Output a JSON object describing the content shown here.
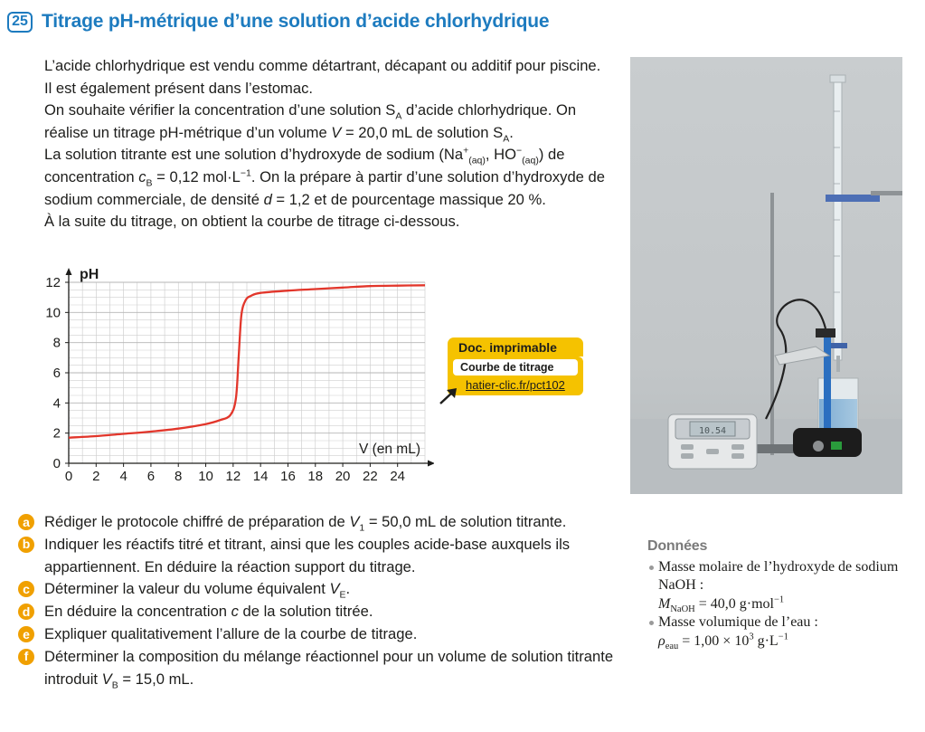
{
  "header": {
    "number": "25",
    "title": "Titrage pH-métrique d’une solution d’acide chlorhydrique"
  },
  "intro": {
    "p1": "L’acide chlorhydrique est vendu comme détartrant, décapant ou additif pour piscine. Il est également présent dans l’estomac.",
    "p2_a": "On souhaite vérifier la concentration d’une solution S",
    "p2_a_sub": "A",
    "p2_b": " d’acide chlorhydrique. On réalise un titrage pH-métrique d’un volume ",
    "p2_var": "V",
    "p2_c": " = 20,0 mL de solution S",
    "p2_c_sub": "A",
    "p2_d": ".",
    "p3_a": "La solution titrante est une solution d’hydroxyde de sodium (Na",
    "p3_na_sup": "+",
    "p3_na_sub": "(aq)",
    "p3_b": ", HO",
    "p3_ho_sup": "−",
    "p3_ho_sub": "(aq)",
    "p3_c": ") de concentration ",
    "p3_var": "c",
    "p3_var_sub": "B",
    "p3_d": " = 0,12 mol·L",
    "p3_d_sup": "−1",
    "p3_e": ". On la prépare à partir d’une solution d’hydroxyde de sodium commerciale, de densité ",
    "p3_dvar": "d",
    "p3_f": " = 1,2 et de pourcentage massique 20 %.",
    "p4": "À la suite du titrage, on obtient la courbe de titrage ci-dessous."
  },
  "chart_data": {
    "type": "line",
    "title": "",
    "xlabel": "V (en mL)",
    "ylabel": "pH",
    "xlim": [
      0,
      26
    ],
    "ylim": [
      0,
      12
    ],
    "xticks": [
      0,
      2,
      4,
      6,
      8,
      10,
      12,
      14,
      16,
      18,
      20,
      22,
      24
    ],
    "yticks": [
      0,
      2,
      4,
      6,
      8,
      10,
      12
    ],
    "grid": true,
    "color": "#e2362b",
    "series": [
      {
        "x": [
          0,
          2,
          4,
          6,
          8,
          10,
          11,
          11.8,
          12.2,
          12.4,
          12.6,
          12.9,
          13.3,
          14,
          16,
          18,
          20,
          22,
          24,
          26
        ],
        "y": [
          1.7,
          1.8,
          1.95,
          2.1,
          2.3,
          2.6,
          2.85,
          3.2,
          4.3,
          7,
          9.8,
          10.8,
          11.1,
          11.3,
          11.45,
          11.55,
          11.65,
          11.75,
          11.78,
          11.8
        ]
      }
    ]
  },
  "doc": {
    "header": "Doc. imprimable",
    "label": "Courbe de titrage",
    "link": "hatier-clic.fr/pct102"
  },
  "photo": {
    "meter_display": "10.54"
  },
  "questions": [
    {
      "letter": "a",
      "parts": [
        {
          "t": "Rédiger le protocole chiffré de préparation de "
        },
        {
          "t": "V",
          "i": true
        },
        {
          "t": "1",
          "sub": true
        },
        {
          "t": " = 50,0 mL de solution titrante."
        }
      ]
    },
    {
      "letter": "b",
      "parts": [
        {
          "t": "Indiquer les réactifs titré et titrant, ainsi que les couples acide-base auxquels ils appartiennent. En déduire la réaction support du titrage."
        }
      ]
    },
    {
      "letter": "c",
      "parts": [
        {
          "t": "Déterminer la valeur du volume équivalent "
        },
        {
          "t": "V",
          "i": true
        },
        {
          "t": "E",
          "sub": true
        },
        {
          "t": "."
        }
      ]
    },
    {
      "letter": "d",
      "parts": [
        {
          "t": "En déduire la concentration "
        },
        {
          "t": "c",
          "i": true
        },
        {
          "t": " de la solution titrée."
        }
      ]
    },
    {
      "letter": "e",
      "parts": [
        {
          "t": "Expliquer qualitativement l’allure de la courbe de titrage."
        }
      ]
    },
    {
      "letter": "f",
      "parts": [
        {
          "t": "Déterminer la composition du mélange réactionnel pour un volume de solution titrante introduit "
        },
        {
          "t": "V",
          "i": true
        },
        {
          "t": "B",
          "sub": true
        },
        {
          "t": " = 15,0 mL."
        }
      ]
    }
  ],
  "donnees": {
    "title": "Données",
    "i1_a": "Masse molaire de l’hydroxyde de sodium NaOH :",
    "i1_var": "M",
    "i1_sub": "NaOH",
    "i1_b": " = 40,0 g·mol",
    "i1_sup": "−1",
    "i2_a": "Masse volumique de l’eau :",
    "i2_var": "ρ",
    "i2_sub": "eau",
    "i2_b": " = 1,00 × 10",
    "i2_sup1": "3",
    "i2_c": " g·L",
    "i2_sup2": "−1"
  },
  "colors": {
    "accent": "#1d7bbf",
    "badge": "#f0a000",
    "curve": "#e2362b",
    "doc": "#f5c200"
  }
}
